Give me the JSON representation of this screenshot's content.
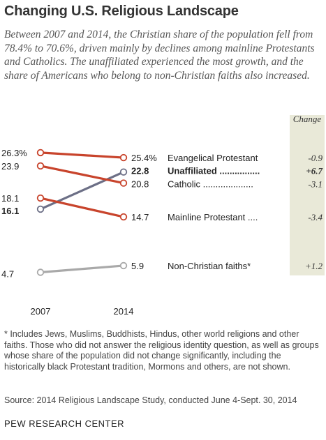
{
  "header": {
    "title": "Changing U.S. Religious Landscape",
    "subtitle": "Between 2007 and 2014, the Christian share of the population fell from 78.4% to 70.6%, driven mainly by declines among mainline Protestants and Catholics. The unaffiliated experienced the most growth, and the share of Americans who belong to non-Christian faiths also increased."
  },
  "chart_data": {
    "type": "line",
    "x": [
      "2007",
      "2014"
    ],
    "change_header": "Change",
    "series": [
      {
        "name": "Evangelical Protestant",
        "values": [
          26.3,
          25.4
        ],
        "start_label": "26.3%",
        "end_label": "25.4%",
        "change": "-0.9",
        "leader": "",
        "color": "#c8442c",
        "bold": false
      },
      {
        "name": "Unaffiliated",
        "values": [
          16.1,
          22.8
        ],
        "start_label": "16.1",
        "end_label": "22.8",
        "change": "+6.7",
        "leader": "................",
        "color": "#6c6f86",
        "bold": true
      },
      {
        "name": "Catholic",
        "values": [
          23.9,
          20.8
        ],
        "start_label": "23.9",
        "end_label": "20.8",
        "change": "-3.1",
        "leader": "....................",
        "color": "#c8442c",
        "bold": false
      },
      {
        "name": "Mainline Protestant",
        "values": [
          18.1,
          14.7
        ],
        "start_label": "18.1",
        "end_label": "14.7",
        "change": "-3.4",
        "leader": "....",
        "color": "#c8442c",
        "bold": false
      },
      {
        "name": "Non-Christian faiths*",
        "values": [
          4.7,
          5.9
        ],
        "start_label": "4.7",
        "end_label": "5.9",
        "change": "+1.2",
        "leader": "",
        "color": "#a9a9a9",
        "bold": false
      }
    ],
    "change_panel_color": "#e9e9d8"
  },
  "footer": {
    "footnote": "* Includes Jews, Muslims, Buddhists, Hindus, other world religions and other faiths. Those who did not answer the religious identity question, as well as groups whose share of the population did not change significantly, including the historically black Protestant tradition, Mormons and others, are not shown.",
    "source": "Source: 2014 Religious Landscape Study, conducted June 4-Sept. 30, 2014",
    "org": "PEW RESEARCH CENTER"
  }
}
